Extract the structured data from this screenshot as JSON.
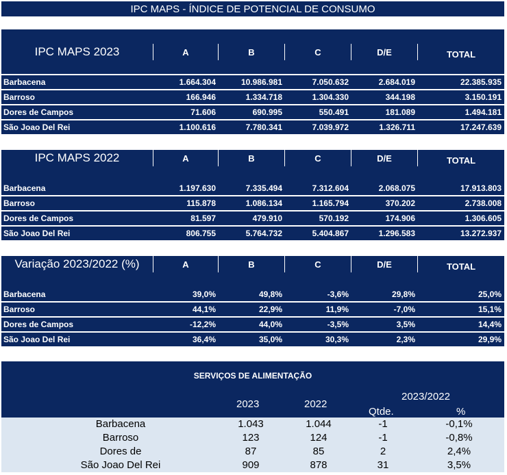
{
  "title": "IPC MAPS - ÍNDICE DE POTENCIAL DE CONSUMO",
  "columns": [
    "A",
    "B",
    "C",
    "D/E",
    "TOTAL"
  ],
  "sections": [
    {
      "title": "IPC MAPS 2023",
      "rows": [
        {
          "name": "Barbacena",
          "values": [
            "1.664.304",
            "10.986.981",
            "7.050.632",
            "2.684.019",
            "22.385.935"
          ]
        },
        {
          "name": "Barroso",
          "values": [
            "166.946",
            "1.334.718",
            "1.304.330",
            "344.198",
            "3.150.191"
          ]
        },
        {
          "name": "Dores de Campos",
          "values": [
            "71.606",
            "690.995",
            "550.491",
            "181.089",
            "1.494.181"
          ]
        },
        {
          "name": "São Joao Del Rei",
          "values": [
            "1.100.616",
            "7.780.341",
            "7.039.972",
            "1.326.711",
            "17.247.639"
          ]
        }
      ]
    },
    {
      "title": "IPC MAPS 2022",
      "rows": [
        {
          "name": "Barbacena",
          "values": [
            "1.197.630",
            "7.335.494",
            "7.312.604",
            "2.068.075",
            "17.913.803"
          ]
        },
        {
          "name": "Barroso",
          "values": [
            "115.878",
            "1.086.134",
            "1.165.794",
            "370.202",
            "2.738.008"
          ]
        },
        {
          "name": "Dores de Campos",
          "values": [
            "81.597",
            "479.910",
            "570.192",
            "174.906",
            "1.306.605"
          ]
        },
        {
          "name": "São Joao Del Rei",
          "values": [
            "806.755",
            "5.764.732",
            "5.404.867",
            "1.296.583",
            "13.272.937"
          ]
        }
      ]
    },
    {
      "title": "Variação 2023/2022 (%)",
      "rows": [
        {
          "name": "Barbacena",
          "values": [
            "39,0%",
            "49,8%",
            "-3,6%",
            "29,8%",
            "25,0%"
          ]
        },
        {
          "name": "Barroso",
          "values": [
            "44,1%",
            "22,9%",
            "11,9%",
            "-7,0%",
            "15,1%"
          ]
        },
        {
          "name": "Dores de Campos",
          "values": [
            "-12,2%",
            "44,0%",
            "-3,5%",
            "3,5%",
            "14,4%"
          ]
        },
        {
          "name": "São Joao Del Rei",
          "values": [
            "36,4%",
            "35,0%",
            "30,3%",
            "2,3%",
            "29,9%"
          ]
        }
      ]
    }
  ],
  "services": {
    "title": "SERVIÇOS DE ALIMENTAÇÃO",
    "col_2023": "2023",
    "col_2022": "2022",
    "col_change": "2023/2022",
    "col_qtde": "Qtde.",
    "col_pct": "%",
    "rows": [
      {
        "name": "Barbacena",
        "v2023": "1.043",
        "v2022": "1.044",
        "qtde": "-1",
        "pct": "-0,1%"
      },
      {
        "name": "Barroso",
        "v2023": "123",
        "v2022": "124",
        "qtde": "-1",
        "pct": "-0,8%"
      },
      {
        "name": "Dores de Campos",
        "v2023": "87",
        "v2022": "85",
        "qtde": "2",
        "pct": "2,4%"
      },
      {
        "name": "São Joao Del Rei",
        "v2023": "909",
        "v2022": "878",
        "qtde": "31",
        "pct": "3,5%"
      }
    ]
  },
  "colors": {
    "navy": "#0b2760",
    "light": "#dce6f1"
  }
}
